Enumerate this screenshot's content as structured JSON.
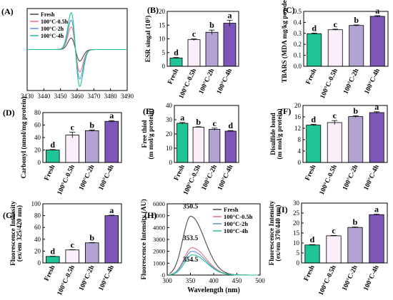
{
  "colors": {
    "fresh": "#1fc497",
    "c05": "#fbeefb",
    "c2": "#b3a3d2",
    "c4": "#7c57b8",
    "line_fresh": "#4a4a4a",
    "line_c05": "#e8727a",
    "line_c2": "#5a93d8",
    "line_c4": "#1fc497"
  },
  "chart_data": [
    {
      "id": "A",
      "panel_label": "(A)",
      "type": "line",
      "xlim": [
        3430,
        3490
      ],
      "ylim": [
        -1,
        1
      ],
      "xticks": [
        "3430",
        "3440",
        "3450",
        "3460",
        "3470",
        "3480",
        "3490"
      ],
      "series": [
        {
          "name": "Fresh",
          "color_key": "line_fresh",
          "amp": 0.28
        },
        {
          "name": "100°C-0.5h",
          "color_key": "line_c05",
          "amp": 0.55
        },
        {
          "name": "100°C-2h",
          "color_key": "line_c2",
          "amp": 0.72
        },
        {
          "name": "100°C-4h",
          "color_key": "line_c4",
          "amp": 0.9
        }
      ]
    },
    {
      "id": "B",
      "panel_label": "(B)",
      "type": "bar",
      "ylabel": "ESR singal (10⁵)",
      "ylim": [
        0,
        20
      ],
      "yticks": [
        "0",
        "5",
        "10",
        "15",
        "20"
      ],
      "categories": [
        "Fresh",
        "100°C-0.5h",
        "100°C-2h",
        "100°C-4h"
      ],
      "values": [
        3.0,
        9.7,
        12.4,
        15.7
      ],
      "errors": [
        0.2,
        0.3,
        0.8,
        1.1
      ],
      "letters": [
        "d",
        "c",
        "b",
        "a"
      ]
    },
    {
      "id": "C",
      "panel_label": "(C)",
      "type": "bar",
      "ylabel": "TBARS (MDA mg/kg powder)",
      "ylim": [
        0,
        0.5
      ],
      "yticks": [
        "0.0",
        "0.1",
        "0.2",
        "0.3",
        "0.4",
        "0.5"
      ],
      "categories": [
        "Fresh",
        "100°C-0.5h",
        "100°C-2h",
        "100°C-4h"
      ],
      "values": [
        0.297,
        0.333,
        0.372,
        0.455
      ],
      "errors": [
        0.005,
        0.005,
        0.005,
        0.006
      ],
      "letters": [
        "d",
        "c",
        "b",
        "a"
      ]
    },
    {
      "id": "D",
      "panel_label": "(D)",
      "type": "bar",
      "ylabel": "Carbonyl (nmol/mg protein)",
      "ylim": [
        0,
        80
      ],
      "yticks": [
        "0",
        "20",
        "40",
        "60",
        "80"
      ],
      "categories": [
        "Fresh",
        "100°C-0.5h",
        "100°C-2h",
        "100°C-4h"
      ],
      "values": [
        20,
        44,
        51,
        66
      ],
      "errors": [
        0.8,
        4.5,
        1.2,
        1.2
      ],
      "letters": [
        "d",
        "c",
        "b",
        "a"
      ]
    },
    {
      "id": "E",
      "panel_label": "(E)",
      "type": "bar",
      "ylabel": "Free thiol (m mol/g protein)",
      "ylim": [
        0,
        40
      ],
      "yticks": [
        "0",
        "10",
        "20",
        "30",
        "40"
      ],
      "categories": [
        "Fresh",
        "100°C-0.5h",
        "100°C-2h",
        "100°C-4h"
      ],
      "values": [
        27.5,
        24.8,
        23.3,
        22.0
      ],
      "errors": [
        0.6,
        0.3,
        0.8,
        0.4
      ],
      "letters": [
        "a",
        "b",
        "c",
        "d"
      ]
    },
    {
      "id": "F",
      "panel_label": "(F)",
      "type": "bar",
      "ylabel": "Disulfide bond (m mol/g protein)",
      "ylim": [
        0,
        20
      ],
      "yticks": [
        "0",
        "4",
        "8",
        "12",
        "16",
        "20"
      ],
      "categories": [
        "Fresh",
        "100°C-0.5h",
        "100°C-2h",
        "100°C-4h"
      ],
      "values": [
        13.1,
        14.0,
        16.1,
        17.5
      ],
      "errors": [
        0.3,
        0.7,
        0.3,
        0.3
      ],
      "letters": [
        "d",
        "c",
        "b",
        "a"
      ]
    },
    {
      "id": "G",
      "panel_label": "(G)",
      "type": "bar",
      "ylabel": "Fluorescence Intensity (ex/em 325/420 nm)",
      "ylim": [
        0,
        100
      ],
      "yticks": [
        "0",
        "20",
        "40",
        "60",
        "80",
        "100"
      ],
      "categories": [
        "Fresh",
        "100°C-0.5h",
        "100°C-2h",
        "100°C-4h"
      ],
      "values": [
        11,
        22,
        34,
        80
      ],
      "errors": [
        0.4,
        0.4,
        0.5,
        0.8
      ],
      "letters": [
        "d",
        "c",
        "b",
        "a"
      ]
    },
    {
      "id": "H",
      "panel_label": "(H)",
      "type": "line",
      "xlabel": "Wavelength (nm)",
      "ylabel": "Fluorescence Intensity (AU)",
      "xlim": [
        300,
        500
      ],
      "ylim": [
        0,
        6000
      ],
      "xticks": [
        "300",
        "350",
        "400",
        "450",
        "500"
      ],
      "yticks": [
        "0",
        "1000",
        "2000",
        "3000",
        "4000",
        "5000",
        "6000"
      ],
      "series": [
        {
          "name": "Fresh",
          "color_key": "line_fresh",
          "peak_x": 350.5,
          "peak_y": 4950
        },
        {
          "name": "100°C-0.5h",
          "color_key": "line_c05",
          "peak_x": 353.5,
          "peak_y": 2300
        },
        {
          "name": "100°C-2h",
          "color_key": "line_c2",
          "peak_x": 353.5,
          "peak_y": 2000
        },
        {
          "name": "100°C-4h",
          "color_key": "line_c4",
          "peak_x": 354.5,
          "peak_y": 1700
        }
      ],
      "annotations": [
        {
          "text": "350.5",
          "x": 350,
          "y": 5600
        },
        {
          "text": "353.5",
          "x": 350,
          "y": 2950
        },
        {
          "text": "354.5",
          "x": 350,
          "y": 1150
        }
      ]
    },
    {
      "id": "I",
      "panel_label": "(I)",
      "type": "bar",
      "ylabel": "Fluorescence Intensity (ex/em 370/440 nm)",
      "ylim": [
        0,
        30
      ],
      "yticks": [
        "0",
        "5",
        "10",
        "15",
        "20",
        "25",
        "30"
      ],
      "categories": [
        "Fresh",
        "100°C-0.5h",
        "100°C-2h",
        "100°C-4h"
      ],
      "values": [
        9,
        13.6,
        17.8,
        24.2
      ],
      "errors": [
        0.2,
        0.2,
        0.2,
        0.2
      ],
      "letters": [
        "d",
        "c",
        "b",
        "a"
      ]
    }
  ]
}
